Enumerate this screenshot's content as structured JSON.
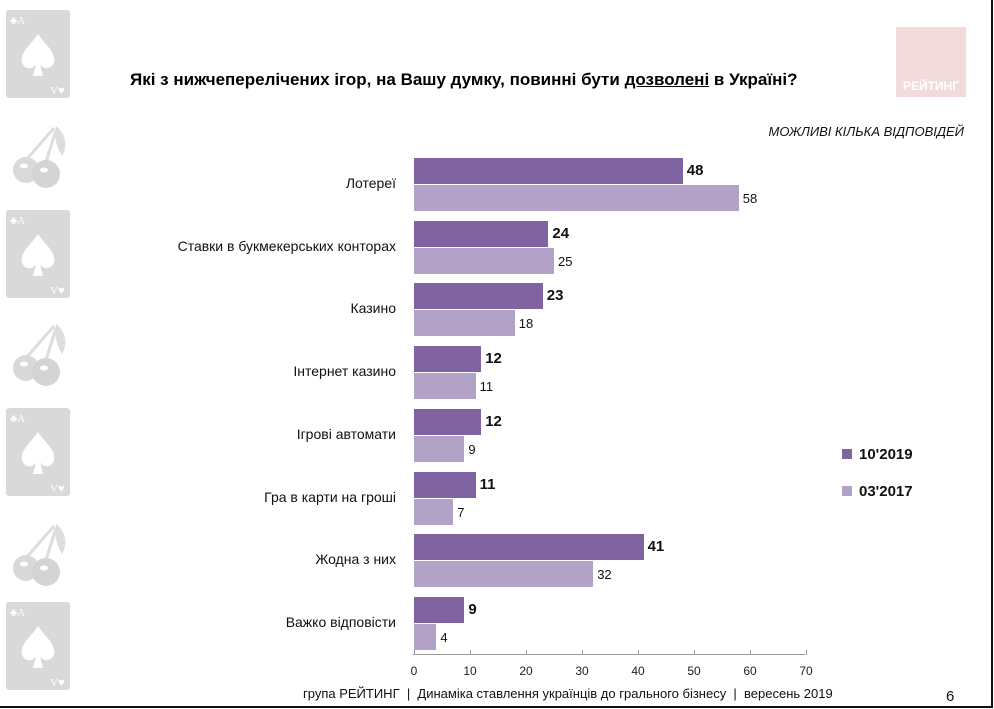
{
  "title": {
    "before": "Які з нижчеперелічених ігор, на Вашу думку, повинні бути ",
    "underlined": "дозволені",
    "after": " в Україні?"
  },
  "logo": "РЕЙТИНГ",
  "note": "МОЖЛИВІ КІЛЬКА ВІДПОВІДЕЙ",
  "chart_data": {
    "type": "bar",
    "orientation": "horizontal",
    "categories": [
      "Лотереї",
      "Ставки в букмекерських конторах",
      "Казино",
      "Інтернет казино",
      "Ігрові автомати",
      "Гра в карти на гроші",
      "Жодна з них",
      "Важко відповісти"
    ],
    "series": [
      {
        "name": "10'2019",
        "color": "#8064a2",
        "values": [
          48,
          24,
          23,
          12,
          12,
          11,
          41,
          9
        ]
      },
      {
        "name": "03'2017",
        "color": "#b3a2c7",
        "values": [
          58,
          25,
          18,
          11,
          9,
          7,
          32,
          4
        ]
      }
    ],
    "xlim": [
      0,
      70
    ],
    "xticks": [
      "0",
      "10",
      "20",
      "30",
      "40",
      "50",
      "60",
      "70"
    ],
    "grid": false,
    "legend_position": "right"
  },
  "footer": "група РЕЙТИНГ  |  Динаміка ставлення українців до грального бізнесу  |  вересень 2019",
  "page_number": "6",
  "decor_card_letter": "A"
}
